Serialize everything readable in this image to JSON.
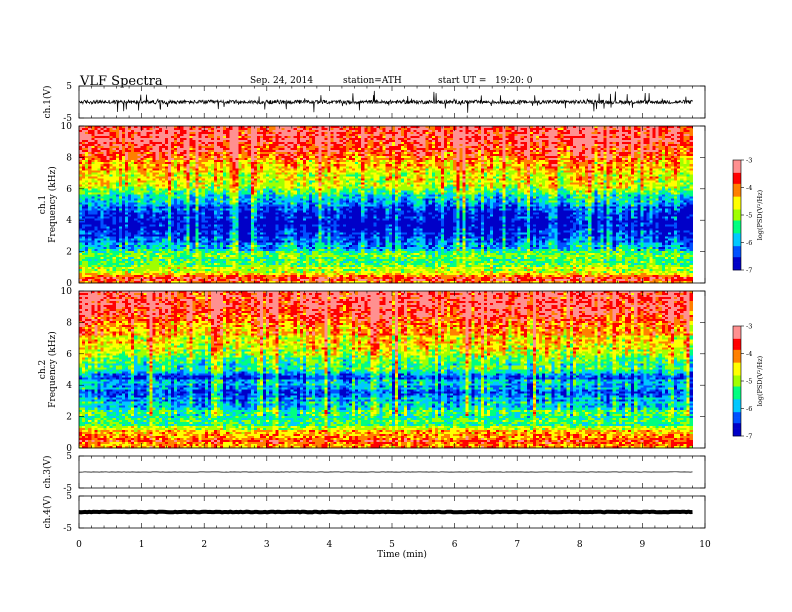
{
  "header": {
    "title": "VLF Spectra",
    "date": "Sep. 24, 2014",
    "station": "station=ATH",
    "start": "start UT =   19:20: 0"
  },
  "colors": {
    "frame": "#000000",
    "trace": "#000000",
    "colormap": [
      "#000000",
      "#0000c8",
      "#0050ff",
      "#00c8ff",
      "#00ff80",
      "#a0ff00",
      "#ffff00",
      "#ff8000",
      "#ff0000",
      "#ff9090",
      "#ffffff"
    ]
  },
  "chart_data": [
    {
      "type": "line",
      "name": "ch1-waveform",
      "ylabel": "ch.1(V)",
      "ylim": [
        -5,
        5
      ],
      "yticks": [
        5,
        -5
      ],
      "xlim": [
        0,
        10
      ],
      "xlabel": "",
      "baseline": 0,
      "noise_amplitude": 0.6
    },
    {
      "type": "heatmap",
      "name": "ch1-spectrogram",
      "ylabel": "ch.1\nFrequency (kHz)",
      "ylabel_lines": [
        "ch.1",
        "Frequency  (kHz)"
      ],
      "ylim": [
        0,
        10
      ],
      "yticks": [
        0,
        2,
        4,
        6,
        8,
        10
      ],
      "xlim": [
        0,
        9.8
      ],
      "colorbar": {
        "label": "log(PSD(V^2/Hz)",
        "label_display": "log(PSD(V²/Hz)",
        "range": [
          -7,
          -3
        ],
        "ticks": [
          -3,
          -4,
          -5,
          -6,
          -7
        ]
      },
      "profile_kHz_logpsd": [
        [
          0,
          -4.2
        ],
        [
          0.3,
          -3.6
        ],
        [
          0.6,
          -4.5
        ],
        [
          1.0,
          -5.0
        ],
        [
          1.5,
          -5.2
        ],
        [
          2.0,
          -5.5
        ],
        [
          2.5,
          -6.2
        ],
        [
          3.0,
          -6.5
        ],
        [
          4.0,
          -6.8
        ],
        [
          5.0,
          -6.2
        ],
        [
          5.5,
          -5.6
        ],
        [
          6.0,
          -5.0
        ],
        [
          7.0,
          -4.5
        ],
        [
          8.0,
          -3.9
        ],
        [
          9.0,
          -3.5
        ],
        [
          10.0,
          -3.4
        ]
      ]
    },
    {
      "type": "heatmap",
      "name": "ch2-spectrogram",
      "ylabel": "ch.2\nFrequency (kHz)",
      "ylabel_lines": [
        "ch.2",
        "Frequency  (kHz)"
      ],
      "ylim": [
        0,
        10
      ],
      "yticks": [
        0,
        2,
        4,
        6,
        8,
        10
      ],
      "xlim": [
        0,
        9.8
      ],
      "colorbar": {
        "label": "log(PSD(V^2/Hz)",
        "label_display": "log(PSD(V²/Hz)",
        "range": [
          -7,
          -3
        ],
        "ticks": [
          -3,
          -4,
          -5,
          -6,
          -7
        ]
      },
      "profile_kHz_logpsd": [
        [
          0,
          -4.5
        ],
        [
          0.5,
          -3.8
        ],
        [
          1.0,
          -4.2
        ],
        [
          1.5,
          -5.3
        ],
        [
          2.0,
          -5.4
        ],
        [
          2.5,
          -5.6
        ],
        [
          3.0,
          -6.0
        ],
        [
          3.5,
          -6.3
        ],
        [
          4.0,
          -5.9
        ],
        [
          4.5,
          -6.3
        ],
        [
          5.0,
          -5.5
        ],
        [
          6.0,
          -4.9
        ],
        [
          7.0,
          -4.4
        ],
        [
          8.0,
          -3.9
        ],
        [
          9.0,
          -3.5
        ],
        [
          10.0,
          -3.4
        ]
      ]
    },
    {
      "type": "line",
      "name": "ch3-waveform",
      "ylabel": "ch.3(V)",
      "ylim": [
        -5,
        5
      ],
      "yticks": [
        5,
        -5
      ],
      "xlim": [
        0,
        10
      ],
      "baseline": 0,
      "noise_amplitude": 0.05
    },
    {
      "type": "line",
      "name": "ch4-waveform",
      "ylabel": "ch.4(V)",
      "ylim": [
        -5,
        5
      ],
      "yticks": [
        5,
        -5
      ],
      "xlim": [
        0,
        10
      ],
      "baseline": 0,
      "noise_amplitude": 0.1
    }
  ],
  "xaxis": {
    "label": "Time (min)",
    "ticks": [
      0,
      1,
      2,
      3,
      4,
      5,
      6,
      7,
      8,
      9,
      10
    ]
  }
}
